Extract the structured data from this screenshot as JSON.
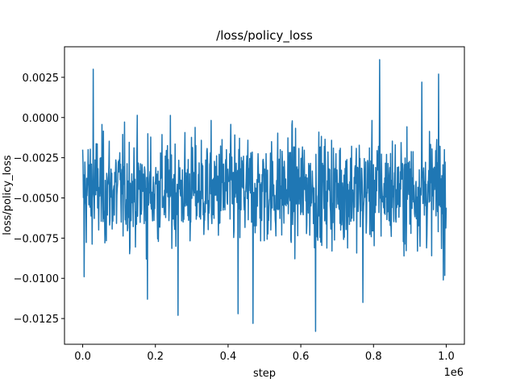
{
  "chart_data": {
    "type": "line",
    "title": "/loss/policy_loss",
    "xlabel": "step",
    "ylabel": "loss/policy_loss",
    "x_offset_label": "1e6",
    "xlim": [
      -0.05,
      1.05
    ],
    "ylim": [
      -0.0141,
      0.0044
    ],
    "xticks": [
      0.0,
      0.2,
      0.4,
      0.6,
      0.8,
      1.0
    ],
    "xtick_labels": [
      "0.0",
      "0.2",
      "0.4",
      "0.6",
      "0.8",
      "1.0"
    ],
    "yticks": [
      0.0025,
      0.0,
      -0.0025,
      -0.005,
      -0.0075,
      -0.01,
      -0.0125
    ],
    "ytick_labels": [
      "0.0025",
      "0.0000",
      "−0.0025",
      "−0.0050",
      "−0.0075",
      "−0.0100",
      "−0.0125"
    ],
    "grid": false,
    "series": [
      {
        "color": "#1f77b4",
        "x_range": [
          0.0,
          1.0
        ],
        "points": 1000,
        "mean": -0.0045,
        "std": 0.0025,
        "min": -0.0133,
        "max": 0.0036,
        "extremes": [
          {
            "x": 0.004,
            "y": -0.0099
          },
          {
            "x": 0.029,
            "y": 0.003
          },
          {
            "x": 0.178,
            "y": -0.0113
          },
          {
            "x": 0.262,
            "y": -0.0123
          },
          {
            "x": 0.427,
            "y": -0.0122
          },
          {
            "x": 0.468,
            "y": -0.0128
          },
          {
            "x": 0.641,
            "y": -0.0133
          },
          {
            "x": 0.817,
            "y": 0.0036
          },
          {
            "x": 0.771,
            "y": -0.0115
          },
          {
            "x": 0.933,
            "y": 0.0022
          },
          {
            "x": 0.979,
            "y": 0.0027
          },
          {
            "x": 0.992,
            "y": -0.0101
          }
        ]
      }
    ]
  }
}
